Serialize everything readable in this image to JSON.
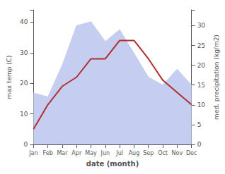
{
  "chart_data": {
    "type": "line",
    "categories": [
      "Jan",
      "Feb",
      "Mar",
      "Apr",
      "May",
      "Jun",
      "Jul",
      "Aug",
      "Sep",
      "Oct",
      "Nov",
      "Dec"
    ],
    "series": [
      {
        "type": "area",
        "axis": "y2",
        "color": "#c5cdf0",
        "values": [
          13,
          12,
          20,
          30,
          31,
          26,
          29,
          23,
          17,
          15,
          19,
          15
        ]
      },
      {
        "type": "line",
        "axis": "y",
        "color": "#b03030",
        "values": [
          5,
          13,
          19,
          22,
          28,
          28,
          34,
          34,
          28,
          21,
          17,
          13
        ]
      }
    ],
    "xlabel": "date (month)",
    "ylabel": "max temp (C)",
    "y2label": "med. precipitation (kg/m2)",
    "ylim": [
      0,
      44
    ],
    "yticks": [
      0,
      10,
      20,
      30,
      40
    ],
    "y2lim": [
      0,
      34
    ],
    "y2ticks": [
      0,
      5,
      10,
      15,
      20,
      25,
      30
    ],
    "grid": false
  }
}
